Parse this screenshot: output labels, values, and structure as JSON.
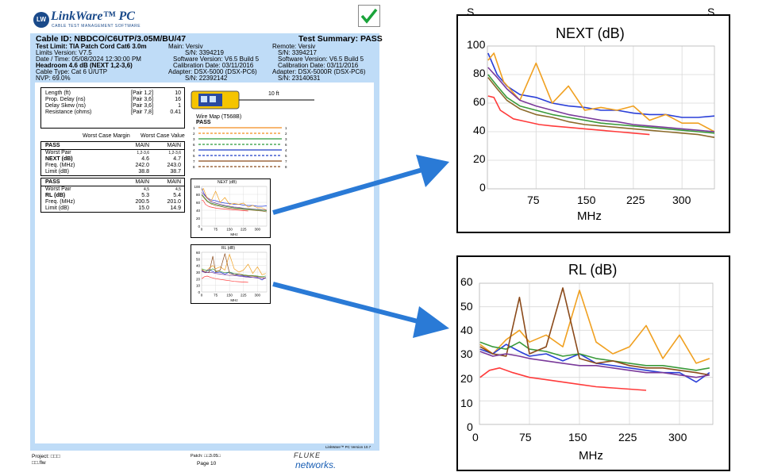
{
  "report": {
    "logo_badge": "LW",
    "logo_title": "LinkWare™ PC",
    "logo_subtitle": "CABLE TEST MANAGEMENT SOFTWARE",
    "cable_id": "Cable ID: NBDCO/C6UTP/3.05M/BU/47",
    "test_summary": "Test Summary: PASS",
    "test_limit": "Test Limit: TIA Patch Cord Cat6 3.0m",
    "limits_version": "Limits Version: V7.5",
    "date_time": "Date / Time: 05/08/2024  12:30:00 PM",
    "headroom": "Headroom 4.6 dB (NEXT 1,2-3,6)",
    "cable_type": "Cable Type: Cat 6 U/UTP",
    "nvp": "NVP: 69.0%",
    "main_label": "Main: Versiv",
    "main_sn": "S/N: 3394219",
    "main_sw": "Software Version: V6.5 Build 5",
    "main_cal": "Calibration Date: 03/11/2016",
    "main_adapter": "Adapter: DSX-5000 (DSX-PC6)",
    "main_adapter_sn": "S/N: 22392142",
    "remote_label": "Remote: Versiv",
    "remote_sn": "S/N: 3394217",
    "remote_sw": "Software Version: V6.5 Build 5",
    "remote_cal": "Calibration Date: 03/11/2016",
    "remote_adapter": "Adapter: DSX-5000R (DSX-PC6)",
    "remote_adapter_sn": "S/N: 23140631",
    "measurements": [
      {
        "label": "Length (ft)",
        "pair": "[Pair 1,2]",
        "value": "10"
      },
      {
        "label": "Prop. Delay (ns)",
        "pair": "[Pair 3,6]",
        "value": "16"
      },
      {
        "label": "Delay Skew (ns)",
        "pair": "[Pair 3,6]",
        "value": "1"
      },
      {
        "label": "Resistance (ohms)",
        "pair": "[Pair 7,8]",
        "value": "0.41"
      }
    ],
    "col_margin": "Worst Case Margin",
    "col_value": "Worst Case Value",
    "next_table": {
      "status": "PASS",
      "main1": "MAIN",
      "main2": "MAIN",
      "rows": [
        {
          "label": "Worst Pair",
          "a": "1,2-3,6",
          "b": "1,2-3,6"
        },
        {
          "label": "NEXT (dB)",
          "a": "4.6",
          "b": "4.7"
        },
        {
          "label": "Freq. (MHz)",
          "a": "242.0",
          "b": "243.0"
        },
        {
          "label": "Limit (dB)",
          "a": "38.8",
          "b": "38.7"
        }
      ]
    },
    "rl_table": {
      "status": "PASS",
      "main1": "MAIN",
      "main2": "MAIN",
      "rows": [
        {
          "label": "Worst Pair",
          "a": "4,5",
          "b": "4,5"
        },
        {
          "label": "RL (dB)",
          "a": "5.3",
          "b": "5.4"
        },
        {
          "label": "Freq. (MHz)",
          "a": "200.5",
          "b": "201.0"
        },
        {
          "label": "Limit (dB)",
          "a": "15.0",
          "b": "14.9"
        }
      ]
    },
    "cable_length_label": "10 ft",
    "wiremap_title": "Wire Map (T568B)",
    "wiremap_status": "PASS",
    "wiremap_pins": [
      "1",
      "2",
      "3",
      "6",
      "4",
      "5",
      "7",
      "8"
    ],
    "wiremap_colors": [
      "#f28c1e",
      "#f28c1e",
      "#2a9a3a",
      "#2a9a3a",
      "#1f3fc8",
      "#1f3fc8",
      "#8b4a1a",
      "#8b4a1a"
    ],
    "mini_next_title": "NEXT (dB)",
    "mini_rl_title": "RL (dB)",
    "mini_xlabel": "MHz",
    "mini_xticks": [
      "0",
      "75",
      "150",
      "225",
      "300"
    ],
    "mini_yticks": [
      "100",
      "80",
      "60",
      "40",
      "20",
      "0"
    ],
    "version_note": "LinkWare™ PC Version 10.7",
    "project": "Project: □□□",
    "file": "□□.flw",
    "patch": "Patch: □□3.05□",
    "page": "Page 10",
    "fluke": "FLUKE",
    "networks": "networks."
  },
  "chart_data": [
    {
      "type": "line",
      "title": "NEXT (dB)",
      "xlabel": "MHz",
      "ylabel": "",
      "xlim": [
        0,
        350
      ],
      "ylim": [
        0,
        100
      ],
      "xticks": [
        0,
        75,
        150,
        225,
        300
      ],
      "yticks": [
        0,
        20,
        40,
        60,
        80,
        100
      ],
      "grid": true,
      "series": [
        {
          "color": "#ff3b3b",
          "x": [
            1,
            10,
            20,
            40,
            60,
            80,
            100,
            125,
            150,
            175,
            200,
            225,
            250
          ],
          "y": [
            65,
            64,
            55,
            49,
            47,
            45,
            44,
            43,
            42,
            41,
            40,
            39,
            38
          ]
        },
        {
          "color": "#2a3fd8",
          "x": [
            1,
            15,
            30,
            50,
            75,
            100,
            125,
            150,
            175,
            200,
            225,
            250,
            275,
            300,
            325,
            350
          ],
          "y": [
            95,
            80,
            72,
            66,
            64,
            60,
            58,
            57,
            55,
            55,
            53,
            52,
            52,
            50,
            50,
            51
          ]
        },
        {
          "color": "#f0a020",
          "x": [
            1,
            10,
            25,
            50,
            75,
            100,
            125,
            150,
            175,
            200,
            225,
            250,
            275,
            300,
            325,
            350
          ],
          "y": [
            90,
            95,
            75,
            62,
            88,
            60,
            72,
            55,
            57,
            55,
            58,
            48,
            52,
            46,
            46,
            40
          ]
        },
        {
          "color": "#7a3a9a",
          "x": [
            1,
            15,
            30,
            50,
            75,
            100,
            125,
            150,
            175,
            200,
            225,
            250,
            275,
            300,
            325,
            350
          ],
          "y": [
            85,
            78,
            70,
            62,
            58,
            55,
            52,
            50,
            48,
            47,
            45,
            44,
            43,
            42,
            41,
            40
          ]
        },
        {
          "color": "#3a9a3a",
          "x": [
            1,
            15,
            30,
            50,
            75,
            100,
            125,
            150,
            175,
            200,
            225,
            250,
            275,
            300,
            325,
            350
          ],
          "y": [
            80,
            72,
            64,
            58,
            55,
            52,
            50,
            48,
            46,
            45,
            44,
            43,
            42,
            41,
            40,
            39
          ]
        },
        {
          "color": "#8b6a2a",
          "x": [
            1,
            15,
            30,
            50,
            75,
            100,
            125,
            150,
            175,
            200,
            225,
            250,
            275,
            300,
            325,
            350
          ],
          "y": [
            78,
            70,
            62,
            56,
            52,
            50,
            47,
            45,
            44,
            43,
            42,
            41,
            40,
            39,
            38,
            36
          ]
        }
      ]
    },
    {
      "type": "line",
      "title": "RL (dB)",
      "xlabel": "MHz",
      "ylabel": "",
      "xlim": [
        0,
        350
      ],
      "ylim": [
        0,
        60
      ],
      "xticks": [
        0,
        75,
        150,
        225,
        300
      ],
      "yticks": [
        0,
        10,
        20,
        30,
        40,
        50,
        60
      ],
      "grid": true,
      "series": [
        {
          "color": "#ff3b3b",
          "x": [
            1,
            15,
            30,
            50,
            75,
            100,
            125,
            150,
            175,
            200,
            225,
            250
          ],
          "y": [
            20,
            23,
            24,
            22,
            20,
            19,
            18,
            17,
            16,
            15.5,
            15,
            14.5
          ]
        },
        {
          "color": "#f0a020",
          "x": [
            1,
            20,
            40,
            60,
            75,
            100,
            125,
            150,
            175,
            200,
            225,
            250,
            275,
            300,
            325,
            345
          ],
          "y": [
            34,
            30,
            36,
            40,
            35,
            38,
            33,
            57,
            35,
            30,
            33,
            42,
            28,
            38,
            26,
            28
          ]
        },
        {
          "color": "#2a3fd8",
          "x": [
            1,
            20,
            40,
            60,
            75,
            100,
            125,
            150,
            175,
            200,
            225,
            250,
            275,
            300,
            325,
            345
          ],
          "y": [
            32,
            30,
            34,
            31,
            29,
            30,
            27,
            30,
            26,
            25,
            24,
            23,
            22,
            22,
            18,
            22
          ]
        },
        {
          "color": "#3a9a3a",
          "x": [
            1,
            20,
            40,
            60,
            75,
            100,
            125,
            150,
            175,
            200,
            225,
            250,
            275,
            300,
            325,
            345
          ],
          "y": [
            35,
            33,
            32,
            35,
            32,
            31,
            29,
            30,
            28,
            27,
            26,
            25,
            25,
            24,
            23,
            24
          ]
        },
        {
          "color": "#8b4a1a",
          "x": [
            1,
            20,
            40,
            60,
            75,
            100,
            125,
            150,
            175,
            200,
            225,
            250,
            275,
            300,
            325,
            345
          ],
          "y": [
            33,
            30,
            29,
            54,
            30,
            33,
            58,
            28,
            26,
            27,
            25,
            24,
            24,
            23,
            22,
            21
          ]
        },
        {
          "color": "#7a3a9a",
          "x": [
            1,
            20,
            40,
            60,
            75,
            100,
            125,
            150,
            175,
            200,
            225,
            250,
            275,
            300,
            325,
            345
          ],
          "y": [
            31,
            29,
            30,
            29,
            28,
            27,
            26,
            25,
            25,
            24,
            23,
            22,
            22,
            21,
            20,
            21
          ]
        }
      ]
    }
  ],
  "big_next": {
    "title": "NEXT (dB)",
    "xlabel": "MHz",
    "yticks": [
      "100",
      "80",
      "60",
      "40",
      "20",
      "0"
    ],
    "xticks": [
      "75",
      "150",
      "225",
      "300"
    ]
  },
  "big_rl": {
    "title": "RL (dB)",
    "xlabel": "MHz",
    "yticks": [
      "60",
      "50",
      "40",
      "30",
      "20",
      "10",
      "0"
    ],
    "xticks": [
      "0",
      "75",
      "150",
      "225",
      "300"
    ]
  },
  "s_marks": [
    "S",
    "S"
  ],
  "colors": {
    "arrow": "#2a7ad6",
    "panel_blue": "#bfdcf7",
    "check_green": "#1aa33a"
  }
}
